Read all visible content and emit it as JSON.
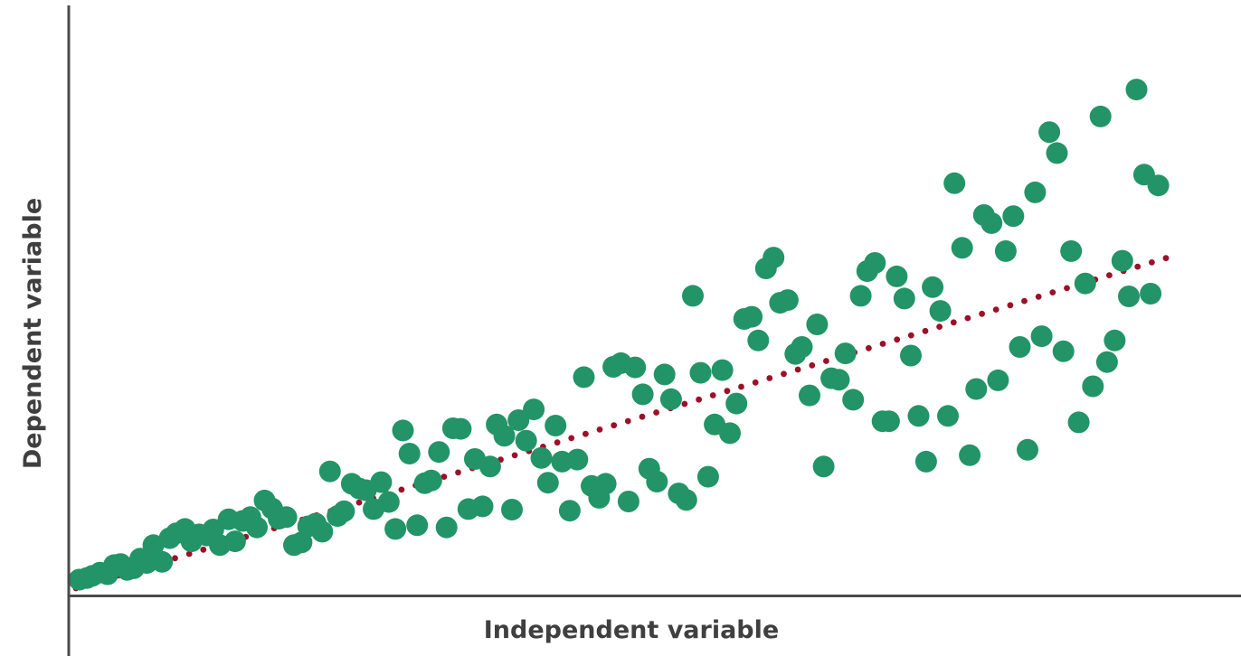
{
  "chart_data": {
    "type": "scatter",
    "title": "",
    "xlabel": "Independent variable",
    "ylabel": "Dependent variable",
    "xlim": [
      0,
      100
    ],
    "ylim": [
      0,
      100
    ],
    "grid": false,
    "point_color": "#229467",
    "trend_color": "#9b1128",
    "axis_color": "#4a4a4a",
    "trendline": {
      "style": "dotted",
      "x": [
        0,
        100
      ],
      "y": [
        0,
        61.3
      ]
    },
    "points": [
      {
        "x": 0.3,
        "y": 1.6
      },
      {
        "x": 1.0,
        "y": 1.9
      },
      {
        "x": 1.5,
        "y": 2.3
      },
      {
        "x": 2.2,
        "y": 2.9
      },
      {
        "x": 2.9,
        "y": 2.6
      },
      {
        "x": 3.5,
        "y": 4.3
      },
      {
        "x": 4.1,
        "y": 4.5
      },
      {
        "x": 4.7,
        "y": 3.4
      },
      {
        "x": 5.3,
        "y": 3.7
      },
      {
        "x": 5.9,
        "y": 5.5
      },
      {
        "x": 6.5,
        "y": 4.7
      },
      {
        "x": 7.1,
        "y": 8.0
      },
      {
        "x": 7.9,
        "y": 4.9
      },
      {
        "x": 8.6,
        "y": 9.3
      },
      {
        "x": 9.2,
        "y": 10.2
      },
      {
        "x": 10.0,
        "y": 11.0
      },
      {
        "x": 10.6,
        "y": 8.7
      },
      {
        "x": 11.3,
        "y": 10.0
      },
      {
        "x": 12.0,
        "y": 9.8
      },
      {
        "x": 12.6,
        "y": 10.9
      },
      {
        "x": 13.2,
        "y": 8.0
      },
      {
        "x": 14.0,
        "y": 12.8
      },
      {
        "x": 14.6,
        "y": 8.7
      },
      {
        "x": 15.3,
        "y": 12.5
      },
      {
        "x": 16.0,
        "y": 13.2
      },
      {
        "x": 16.6,
        "y": 11.3
      },
      {
        "x": 17.3,
        "y": 16.3
      },
      {
        "x": 18.0,
        "y": 14.8
      },
      {
        "x": 18.6,
        "y": 12.9
      },
      {
        "x": 19.3,
        "y": 13.2
      },
      {
        "x": 20.0,
        "y": 8.0
      },
      {
        "x": 20.7,
        "y": 8.5
      },
      {
        "x": 21.3,
        "y": 11.5
      },
      {
        "x": 22.0,
        "y": 12.0
      },
      {
        "x": 22.6,
        "y": 10.5
      },
      {
        "x": 23.3,
        "y": 21.7
      },
      {
        "x": 24.0,
        "y": 13.4
      },
      {
        "x": 24.6,
        "y": 14.3
      },
      {
        "x": 25.3,
        "y": 19.4
      },
      {
        "x": 26.0,
        "y": 18.5
      },
      {
        "x": 26.6,
        "y": 18.2
      },
      {
        "x": 27.3,
        "y": 14.7
      },
      {
        "x": 28.0,
        "y": 19.7
      },
      {
        "x": 28.7,
        "y": 16.0
      },
      {
        "x": 29.3,
        "y": 11.0
      },
      {
        "x": 30.0,
        "y": 29.3
      },
      {
        "x": 30.6,
        "y": 25.0
      },
      {
        "x": 31.3,
        "y": 11.7
      },
      {
        "x": 32.0,
        "y": 19.5
      },
      {
        "x": 32.6,
        "y": 20.0
      },
      {
        "x": 33.3,
        "y": 25.3
      },
      {
        "x": 34.0,
        "y": 11.3
      },
      {
        "x": 34.6,
        "y": 29.7
      },
      {
        "x": 35.3,
        "y": 29.6
      },
      {
        "x": 36.0,
        "y": 14.7
      },
      {
        "x": 36.6,
        "y": 24.0
      },
      {
        "x": 37.3,
        "y": 15.2
      },
      {
        "x": 38.0,
        "y": 22.6
      },
      {
        "x": 38.6,
        "y": 30.4
      },
      {
        "x": 39.3,
        "y": 28.3
      },
      {
        "x": 40.0,
        "y": 14.6
      },
      {
        "x": 40.6,
        "y": 31.2
      },
      {
        "x": 41.3,
        "y": 27.4
      },
      {
        "x": 42.0,
        "y": 33.2
      },
      {
        "x": 42.7,
        "y": 24.2
      },
      {
        "x": 43.3,
        "y": 19.6
      },
      {
        "x": 44.0,
        "y": 30.2
      },
      {
        "x": 44.6,
        "y": 23.5
      },
      {
        "x": 45.3,
        "y": 14.4
      },
      {
        "x": 46.0,
        "y": 23.9
      },
      {
        "x": 46.6,
        "y": 39.2
      },
      {
        "x": 47.3,
        "y": 19.0
      },
      {
        "x": 48.0,
        "y": 16.8
      },
      {
        "x": 48.6,
        "y": 19.4
      },
      {
        "x": 49.3,
        "y": 41.1
      },
      {
        "x": 50.0,
        "y": 41.8
      },
      {
        "x": 50.7,
        "y": 16.1
      },
      {
        "x": 51.3,
        "y": 41.0
      },
      {
        "x": 52.0,
        "y": 36.0
      },
      {
        "x": 52.6,
        "y": 22.2
      },
      {
        "x": 53.3,
        "y": 19.8
      },
      {
        "x": 54.0,
        "y": 39.7
      },
      {
        "x": 54.6,
        "y": 35.1
      },
      {
        "x": 55.3,
        "y": 17.6
      },
      {
        "x": 56.0,
        "y": 16.4
      },
      {
        "x": 56.6,
        "y": 54.3
      },
      {
        "x": 57.3,
        "y": 40.0
      },
      {
        "x": 58.0,
        "y": 20.7
      },
      {
        "x": 58.6,
        "y": 30.4
      },
      {
        "x": 59.3,
        "y": 40.5
      },
      {
        "x": 60.0,
        "y": 28.8
      },
      {
        "x": 60.6,
        "y": 34.3
      },
      {
        "x": 61.3,
        "y": 50.0
      },
      {
        "x": 62.0,
        "y": 50.4
      },
      {
        "x": 62.6,
        "y": 46.0
      },
      {
        "x": 63.3,
        "y": 59.4
      },
      {
        "x": 64.0,
        "y": 61.4
      },
      {
        "x": 64.6,
        "y": 53.0
      },
      {
        "x": 65.3,
        "y": 53.5
      },
      {
        "x": 66.0,
        "y": 43.5
      },
      {
        "x": 66.6,
        "y": 44.8
      },
      {
        "x": 67.3,
        "y": 35.8
      },
      {
        "x": 68.0,
        "y": 49.0
      },
      {
        "x": 68.6,
        "y": 22.6
      },
      {
        "x": 69.3,
        "y": 39.0
      },
      {
        "x": 70.0,
        "y": 38.7
      },
      {
        "x": 70.6,
        "y": 43.6
      },
      {
        "x": 71.3,
        "y": 35.0
      },
      {
        "x": 72.0,
        "y": 54.3
      },
      {
        "x": 72.6,
        "y": 58.9
      },
      {
        "x": 73.3,
        "y": 60.4
      },
      {
        "x": 74.0,
        "y": 31.0
      },
      {
        "x": 74.6,
        "y": 31.0
      },
      {
        "x": 75.3,
        "y": 57.9
      },
      {
        "x": 76.0,
        "y": 53.8
      },
      {
        "x": 76.6,
        "y": 43.2
      },
      {
        "x": 77.3,
        "y": 32.0
      },
      {
        "x": 78.0,
        "y": 23.5
      },
      {
        "x": 78.6,
        "y": 55.9
      },
      {
        "x": 79.3,
        "y": 51.5
      },
      {
        "x": 80.0,
        "y": 32.0
      },
      {
        "x": 80.6,
        "y": 75.2
      },
      {
        "x": 81.3,
        "y": 63.2
      },
      {
        "x": 82.0,
        "y": 24.7
      },
      {
        "x": 82.6,
        "y": 37.0
      },
      {
        "x": 83.3,
        "y": 69.3
      },
      {
        "x": 84.0,
        "y": 67.8
      },
      {
        "x": 84.6,
        "y": 38.6
      },
      {
        "x": 85.3,
        "y": 62.6
      },
      {
        "x": 86.0,
        "y": 69.1
      },
      {
        "x": 86.6,
        "y": 44.8
      },
      {
        "x": 87.3,
        "y": 25.7
      },
      {
        "x": 88.0,
        "y": 73.5
      },
      {
        "x": 88.6,
        "y": 46.8
      },
      {
        "x": 89.3,
        "y": 84.7
      },
      {
        "x": 90.0,
        "y": 80.8
      },
      {
        "x": 90.6,
        "y": 44.0
      },
      {
        "x": 91.3,
        "y": 62.6
      },
      {
        "x": 92.0,
        "y": 30.8
      },
      {
        "x": 92.6,
        "y": 56.6
      },
      {
        "x": 93.3,
        "y": 37.5
      },
      {
        "x": 94.0,
        "y": 87.6
      },
      {
        "x": 94.6,
        "y": 42.0
      },
      {
        "x": 95.3,
        "y": 46.0
      },
      {
        "x": 96.0,
        "y": 60.8
      },
      {
        "x": 96.6,
        "y": 54.2
      },
      {
        "x": 97.3,
        "y": 92.6
      },
      {
        "x": 98.0,
        "y": 76.8
      },
      {
        "x": 98.6,
        "y": 54.7
      },
      {
        "x": 99.3,
        "y": 74.8
      }
    ]
  }
}
